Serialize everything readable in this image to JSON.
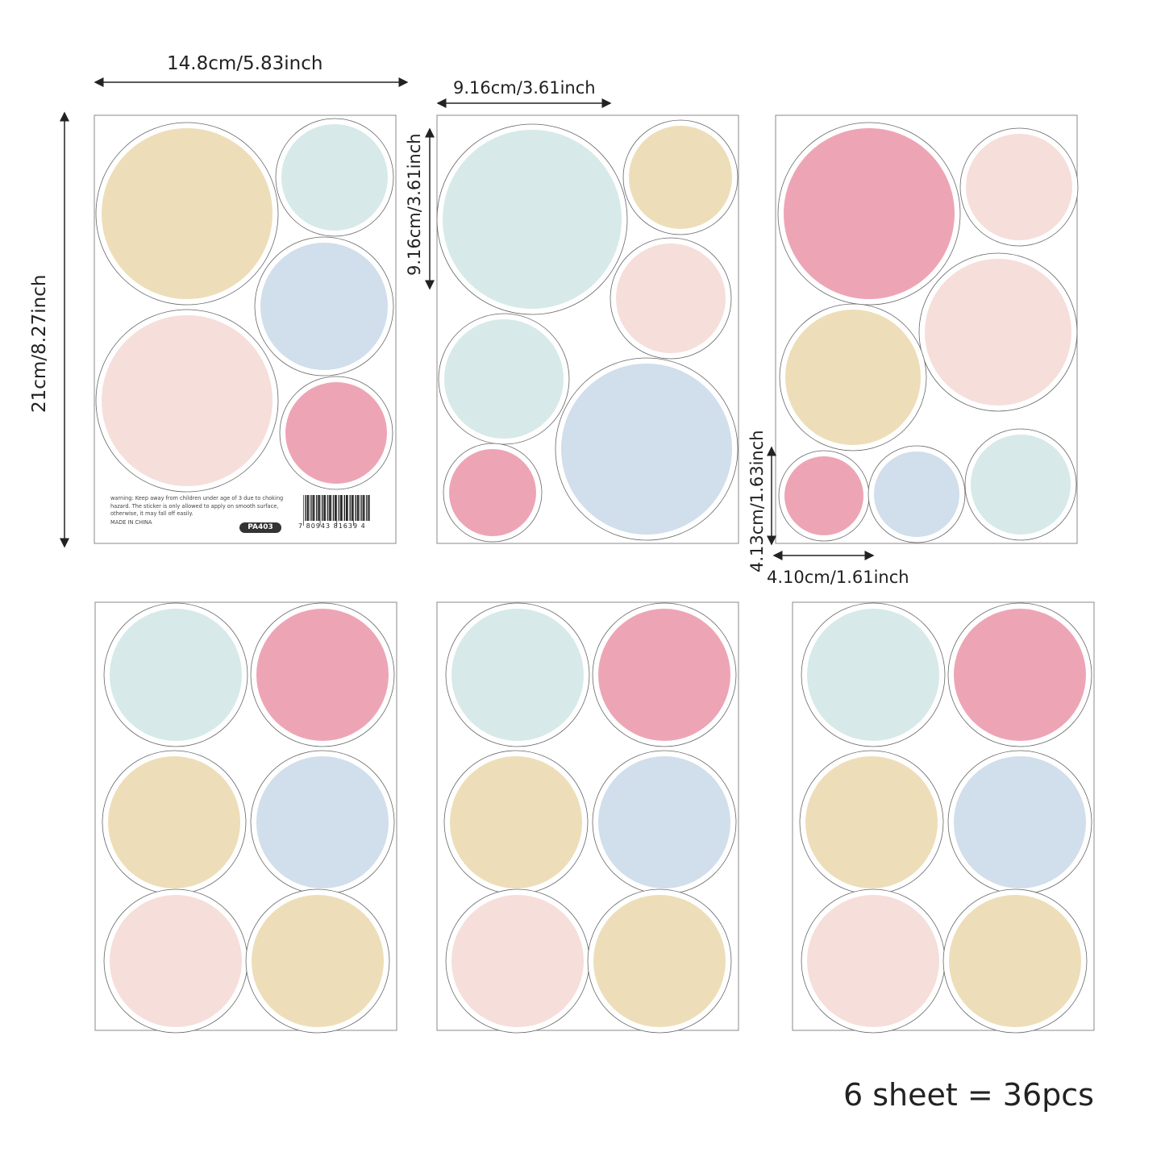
{
  "dimensions": {
    "sheet_width": "14.8cm/5.83inch",
    "sheet_height": "21cm/8.27inch",
    "large_circle_width": "9.16cm/3.61inch",
    "large_circle_height": "9.16cm/3.61inch",
    "small_circle_height": "4.13cm/1.63inch",
    "small_circle_width": "4.10cm/1.61inch"
  },
  "label": {
    "warning": "warning: Keep away from children under age of 3 due to choking hazard. The sticker is only allowed to apply on smooth surface, otherwise, it may fall off easily.",
    "made_in": "MADE IN CHINA",
    "product_code": "PA403",
    "barcode_number": "7 80943 81639 4"
  },
  "total_text": "6 sheet = 36pcs",
  "palette": {
    "mint": "#d5e8e8",
    "blue": "#cfdcea",
    "beige": "#ecdcb5",
    "blush": "#f6dcd8",
    "pink": "#eca0b1"
  }
}
